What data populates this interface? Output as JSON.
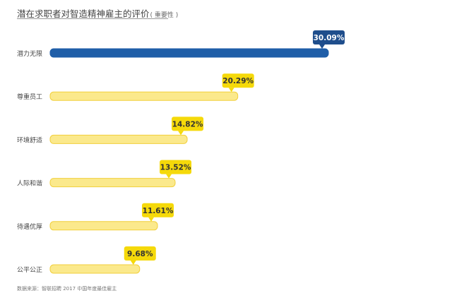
{
  "header": {
    "title": "潜在求职者对智造精神雇主的评价",
    "subtitle": "( 重要性 )"
  },
  "footer": {
    "source": "数据来源：智联招聘 2017 中国年度最佳雇主"
  },
  "colors": {
    "highlight_bar": "#1f5ea8",
    "highlight_label_bg": "#1f4e8c",
    "bar": "#fbe98c",
    "bar_border": "#f1cf3c",
    "label_bg": "#f5d90a",
    "label_text_dark": "#333333",
    "label_text_light": "#ffffff"
  },
  "chart_data": {
    "type": "bar",
    "orientation": "horizontal",
    "categories": [
      "潜力无限",
      "尊重员工",
      "环境舒适",
      "人际和谐",
      "待遇优厚",
      "公平公正"
    ],
    "values": [
      30.09,
      20.29,
      14.82,
      13.52,
      11.61,
      9.68
    ],
    "value_labels": [
      "30.09%",
      "20.29%",
      "14.82%",
      "13.52%",
      "11.61%",
      "9.68%"
    ],
    "unit": "%",
    "highlight_index": 0,
    "xlim": [
      0,
      30.09
    ],
    "grid": false,
    "legend": "none"
  }
}
